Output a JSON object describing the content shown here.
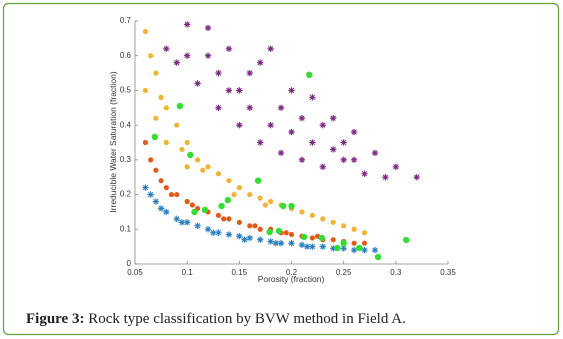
{
  "chart_data": {
    "type": "scatter",
    "x_label": "Porosity (fraction)",
    "y_label": "Irreducible Water Saturation (fraction)",
    "xlim": [
      0.05,
      0.35
    ],
    "ylim": [
      0,
      0.7
    ],
    "xticks": [
      0.05,
      0.1,
      0.15,
      0.2,
      0.25,
      0.3,
      0.35
    ],
    "yticks": [
      0,
      0.1,
      0.2,
      0.3,
      0.4,
      0.5,
      0.6,
      0.7
    ],
    "series": [
      {
        "color": "#7b2a80",
        "marker": "star",
        "x": [
          0.08,
          0.09,
          0.1,
          0.11,
          0.12,
          0.13,
          0.14,
          0.15,
          0.16,
          0.17,
          0.18,
          0.19,
          0.2,
          0.21,
          0.22,
          0.23,
          0.24,
          0.25,
          0.26,
          0.27,
          0.28,
          0.29,
          0.3,
          0.32,
          0.1,
          0.12,
          0.14,
          0.16,
          0.18,
          0.2,
          0.22,
          0.24,
          0.26,
          0.13,
          0.15,
          0.17,
          0.19,
          0.21,
          0.23,
          0.25
        ],
        "values": [
          0.62,
          0.58,
          0.69,
          0.52,
          0.68,
          0.45,
          0.62,
          0.4,
          0.55,
          0.35,
          0.62,
          0.32,
          0.5,
          0.3,
          0.48,
          0.28,
          0.42,
          0.3,
          0.38,
          0.26,
          0.32,
          0.25,
          0.28,
          0.25,
          0.6,
          0.6,
          0.5,
          0.45,
          0.4,
          0.38,
          0.35,
          0.33,
          0.3,
          0.55,
          0.5,
          0.58,
          0.45,
          0.42,
          0.4,
          0.35
        ]
      },
      {
        "color": "#f2b233",
        "marker": "circle",
        "x": [
          0.06,
          0.06,
          0.065,
          0.07,
          0.07,
          0.08,
          0.08,
          0.09,
          0.1,
          0.1,
          0.11,
          0.12,
          0.13,
          0.14,
          0.15,
          0.16,
          0.17,
          0.18,
          0.19,
          0.2,
          0.21,
          0.22,
          0.23,
          0.24,
          0.25,
          0.26,
          0.27,
          0.075,
          0.095,
          0.115,
          0.145,
          0.175
        ],
        "values": [
          0.67,
          0.5,
          0.6,
          0.55,
          0.42,
          0.45,
          0.35,
          0.4,
          0.35,
          0.28,
          0.3,
          0.28,
          0.26,
          0.24,
          0.22,
          0.2,
          0.19,
          0.18,
          0.17,
          0.16,
          0.15,
          0.14,
          0.13,
          0.12,
          0.11,
          0.1,
          0.09,
          0.48,
          0.33,
          0.27,
          0.2,
          0.17
        ]
      },
      {
        "color": "#e05a1a",
        "marker": "circle",
        "x": [
          0.06,
          0.065,
          0.07,
          0.075,
          0.08,
          0.09,
          0.1,
          0.11,
          0.12,
          0.13,
          0.14,
          0.15,
          0.16,
          0.17,
          0.18,
          0.19,
          0.2,
          0.21,
          0.22,
          0.23,
          0.24,
          0.25,
          0.26,
          0.27,
          0.085,
          0.105,
          0.135,
          0.165,
          0.195,
          0.225
        ],
        "values": [
          0.35,
          0.3,
          0.27,
          0.24,
          0.22,
          0.2,
          0.18,
          0.16,
          0.15,
          0.14,
          0.13,
          0.12,
          0.11,
          0.1,
          0.1,
          0.09,
          0.085,
          0.08,
          0.075,
          0.07,
          0.07,
          0.065,
          0.06,
          0.06,
          0.2,
          0.17,
          0.13,
          0.11,
          0.09,
          0.08
        ]
      },
      {
        "color": "#2a7fc1",
        "marker": "star",
        "x": [
          0.06,
          0.065,
          0.07,
          0.08,
          0.09,
          0.1,
          0.11,
          0.12,
          0.13,
          0.14,
          0.15,
          0.16,
          0.17,
          0.18,
          0.19,
          0.2,
          0.21,
          0.22,
          0.23,
          0.24,
          0.25,
          0.26,
          0.27,
          0.28,
          0.075,
          0.095,
          0.125,
          0.155,
          0.185,
          0.215
        ],
        "values": [
          0.22,
          0.2,
          0.18,
          0.15,
          0.13,
          0.12,
          0.11,
          0.1,
          0.09,
          0.085,
          0.08,
          0.075,
          0.07,
          0.065,
          0.06,
          0.06,
          0.055,
          0.05,
          0.05,
          0.045,
          0.045,
          0.04,
          0.04,
          0.04,
          0.16,
          0.12,
          0.09,
          0.07,
          0.06,
          0.05
        ]
      },
      {
        "color": "#33dd33",
        "marker": "dot",
        "x": [
          0.069,
          0.093,
          0.103,
          0.107,
          0.117,
          0.133,
          0.139,
          0.168,
          0.192,
          0.2,
          0.217,
          0.179,
          0.188,
          0.212,
          0.229,
          0.244,
          0.265,
          0.283,
          0.31,
          0.25
        ],
        "values": [
          0.366,
          0.455,
          0.314,
          0.15,
          0.156,
          0.167,
          0.184,
          0.24,
          0.167,
          0.167,
          0.545,
          0.092,
          0.095,
          0.078,
          0.075,
          0.046,
          0.046,
          0.02,
          0.069,
          0.06
        ]
      }
    ]
  },
  "caption": {
    "label": "Figure 3:",
    "text": "Rock type classification by BVW method in Field A."
  }
}
